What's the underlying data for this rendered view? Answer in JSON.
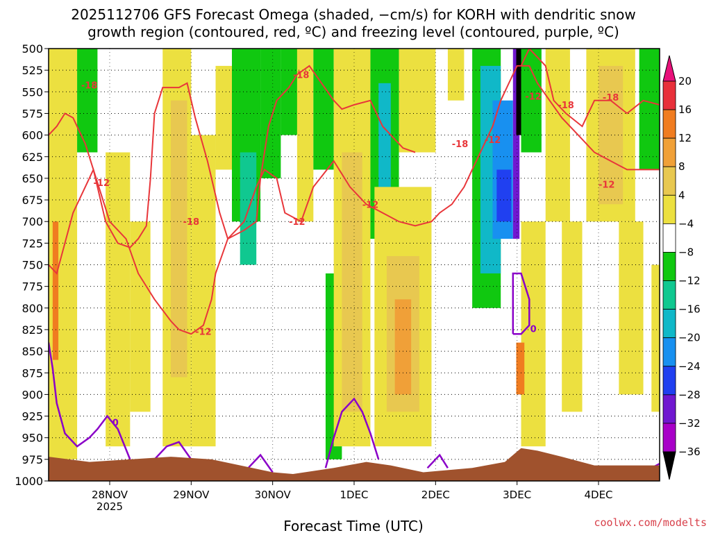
{
  "chart_data": {
    "type": "heatmap",
    "title_line1": "2025112706 GFS Forecast Omega (shaded, −cm/s) for KORH with dendritic snow",
    "title_line2": "growth region (contoured, red, ºC) and freezing level (contoured, purple, ºC)",
    "xlabel": "Forecast Time (UTC)",
    "ylabel": "",
    "credit": "coolwx.com/modelts",
    "y_levels": [
      500,
      525,
      550,
      575,
      600,
      625,
      650,
      675,
      700,
      725,
      750,
      775,
      800,
      825,
      850,
      875,
      900,
      925,
      950,
      975,
      1000
    ],
    "ylim": [
      500,
      1000
    ],
    "x_ticks": [
      {
        "label": "28NOV",
        "sub": "2025",
        "t": 0.75
      },
      {
        "label": "29NOV",
        "sub": "",
        "t": 1.75
      },
      {
        "label": "30NOV",
        "sub": "",
        "t": 2.75
      },
      {
        "label": "1DEC",
        "sub": "",
        "t": 3.75
      },
      {
        "label": "2DEC",
        "sub": "",
        "t": 4.75
      },
      {
        "label": "3DEC",
        "sub": "",
        "t": 5.75
      },
      {
        "label": "4DEC",
        "sub": "",
        "t": 6.75
      }
    ],
    "xlim": [
      0,
      7.5
    ],
    "colorbar": {
      "levels": [
        "20",
        "16",
        "12",
        "8",
        "4",
        "−4",
        "−8",
        "−12",
        "−16",
        "−20",
        "−24",
        "−28",
        "−32",
        "−36"
      ],
      "colors": [
        "#e8303a",
        "#f07c20",
        "#f0a038",
        "#e8c850",
        "#ece040",
        "#ffffff",
        "#10c810",
        "#10c890",
        "#10b8c8",
        "#1890f0",
        "#2040f0",
        "#7018d0",
        "#a800c8",
        "#a8a8a8"
      ],
      "top_color": "#e8107a",
      "bottom_color": "#000000"
    },
    "omega_bands": [
      {
        "t0": 0.0,
        "t1": 0.35,
        "p0": 500,
        "p1": 975,
        "value": 6
      },
      {
        "t0": 0.05,
        "t1": 0.12,
        "p0": 700,
        "p1": 860,
        "value": 18
      },
      {
        "t0": 0.35,
        "t1": 0.6,
        "p0": 500,
        "p1": 620,
        "value": -6
      },
      {
        "t0": 0.7,
        "t1": 1.0,
        "p0": 620,
        "p1": 960,
        "value": 6
      },
      {
        "t0": 1.0,
        "t1": 1.25,
        "p0": 700,
        "p1": 920,
        "value": 6
      },
      {
        "t0": 1.4,
        "t1": 1.75,
        "p0": 500,
        "p1": 960,
        "value": 6
      },
      {
        "t0": 1.5,
        "t1": 1.7,
        "p0": 560,
        "p1": 880,
        "value": 10
      },
      {
        "t0": 1.75,
        "t1": 2.05,
        "p0": 600,
        "p1": 960,
        "value": 6
      },
      {
        "t0": 2.05,
        "t1": 2.25,
        "p0": 520,
        "p1": 640,
        "value": 6
      },
      {
        "t0": 2.25,
        "t1": 2.6,
        "p0": 500,
        "p1": 700,
        "value": -7
      },
      {
        "t0": 2.35,
        "t1": 2.55,
        "p0": 620,
        "p1": 750,
        "value": -10
      },
      {
        "t0": 2.6,
        "t1": 2.85,
        "p0": 500,
        "p1": 650,
        "value": -6
      },
      {
        "t0": 2.85,
        "t1": 3.1,
        "p0": 500,
        "p1": 600,
        "value": -6
      },
      {
        "t0": 3.05,
        "t1": 3.25,
        "p0": 500,
        "p1": 700,
        "value": 6
      },
      {
        "t0": 3.25,
        "t1": 3.5,
        "p0": 500,
        "p1": 640,
        "value": -6
      },
      {
        "t0": 3.4,
        "t1": 3.6,
        "p0": 760,
        "p1": 975,
        "value": -6
      },
      {
        "t0": 3.5,
        "t1": 3.95,
        "p0": 500,
        "p1": 960,
        "value": 6
      },
      {
        "t0": 3.6,
        "t1": 3.85,
        "p0": 620,
        "p1": 920,
        "value": 10
      },
      {
        "t0": 3.95,
        "t1": 4.3,
        "p0": 500,
        "p1": 720,
        "value": -8
      },
      {
        "t0": 4.05,
        "t1": 4.2,
        "p0": 540,
        "p1": 700,
        "value": -14
      },
      {
        "t0": 4.0,
        "t1": 4.7,
        "p0": 660,
        "p1": 960,
        "value": 6
      },
      {
        "t0": 4.15,
        "t1": 4.55,
        "p0": 740,
        "p1": 920,
        "value": 10
      },
      {
        "t0": 4.25,
        "t1": 4.45,
        "p0": 790,
        "p1": 900,
        "value": 14
      },
      {
        "t0": 4.3,
        "t1": 4.75,
        "p0": 500,
        "p1": 620,
        "value": 6
      },
      {
        "t0": 4.9,
        "t1": 5.1,
        "p0": 500,
        "p1": 560,
        "value": 6
      },
      {
        "t0": 5.2,
        "t1": 5.55,
        "p0": 500,
        "p1": 800,
        "value": -8
      },
      {
        "t0": 5.3,
        "t1": 5.55,
        "p0": 520,
        "p1": 760,
        "value": -14
      },
      {
        "t0": 5.45,
        "t1": 5.7,
        "p0": 560,
        "p1": 720,
        "value": -18
      },
      {
        "t0": 5.5,
        "t1": 5.68,
        "p0": 640,
        "p1": 700,
        "value": -22
      },
      {
        "t0": 5.7,
        "t1": 5.78,
        "p0": 500,
        "p1": 720,
        "value": -26
      },
      {
        "t0": 5.74,
        "t1": 5.82,
        "p0": 500,
        "p1": 600,
        "value": -40
      },
      {
        "t0": 5.8,
        "t1": 6.05,
        "p0": 500,
        "p1": 620,
        "value": -6
      },
      {
        "t0": 5.8,
        "t1": 6.1,
        "p0": 700,
        "p1": 960,
        "value": 6
      },
      {
        "t0": 5.74,
        "t1": 5.84,
        "p0": 840,
        "p1": 900,
        "value": 18
      },
      {
        "t0": 6.1,
        "t1": 6.4,
        "p0": 500,
        "p1": 700,
        "value": 6
      },
      {
        "t0": 6.3,
        "t1": 6.55,
        "p0": 700,
        "p1": 920,
        "value": 6
      },
      {
        "t0": 6.6,
        "t1": 7.2,
        "p0": 500,
        "p1": 700,
        "value": 6
      },
      {
        "t0": 6.75,
        "t1": 7.05,
        "p0": 520,
        "p1": 680,
        "value": 10
      },
      {
        "t0": 7.0,
        "t1": 7.3,
        "p0": 700,
        "p1": 900,
        "value": 6
      },
      {
        "t0": 7.25,
        "t1": 7.5,
        "p0": 500,
        "p1": 640,
        "value": -6
      },
      {
        "t0": 7.4,
        "t1": 7.5,
        "p0": 750,
        "p1": 920,
        "value": 6
      }
    ],
    "contours_red": [
      {
        "label": "-18",
        "points": [
          [
            0.0,
            600
          ],
          [
            0.1,
            590
          ],
          [
            0.2,
            575
          ],
          [
            0.3,
            580
          ],
          [
            0.45,
            610
          ],
          [
            0.55,
            640
          ],
          [
            0.7,
            700
          ],
          [
            0.85,
            725
          ],
          [
            1.0,
            730
          ],
          [
            1.1,
            720
          ],
          [
            1.2,
            705
          ],
          [
            1.25,
            650
          ],
          [
            1.3,
            575
          ],
          [
            1.4,
            545
          ],
          [
            1.5,
            545
          ],
          [
            1.6,
            545
          ],
          [
            1.7,
            540
          ],
          [
            1.8,
            580
          ],
          [
            1.95,
            630
          ],
          [
            2.1,
            690
          ],
          [
            2.2,
            720
          ],
          [
            2.4,
            710
          ],
          [
            2.55,
            700
          ],
          [
            2.6,
            650
          ],
          [
            2.7,
            590
          ],
          [
            2.8,
            560
          ],
          [
            2.95,
            545
          ],
          [
            3.05,
            530
          ],
          [
            3.2,
            520
          ],
          [
            3.35,
            540
          ],
          [
            3.5,
            560
          ],
          [
            3.6,
            570
          ],
          [
            3.75,
            565
          ],
          [
            3.95,
            560
          ],
          [
            4.1,
            590
          ],
          [
            4.2,
            600
          ],
          [
            4.35,
            615
          ],
          [
            4.5,
            620
          ]
        ]
      },
      {
        "label": "-12",
        "points": [
          [
            0.0,
            750
          ],
          [
            0.1,
            760
          ],
          [
            0.3,
            690
          ],
          [
            0.55,
            640
          ],
          [
            0.75,
            700
          ],
          [
            0.95,
            720
          ],
          [
            1.1,
            760
          ],
          [
            1.3,
            790
          ],
          [
            1.5,
            815
          ],
          [
            1.6,
            825
          ],
          [
            1.75,
            830
          ],
          [
            1.9,
            820
          ],
          [
            2.0,
            790
          ],
          [
            2.05,
            760
          ],
          [
            2.2,
            720
          ],
          [
            2.4,
            700
          ],
          [
            2.55,
            660
          ],
          [
            2.65,
            640
          ],
          [
            2.8,
            650
          ],
          [
            2.9,
            690
          ],
          [
            3.1,
            700
          ],
          [
            3.25,
            660
          ],
          [
            3.5,
            630
          ],
          [
            3.7,
            660
          ],
          [
            3.9,
            680
          ],
          [
            4.1,
            690
          ],
          [
            4.3,
            700
          ],
          [
            4.5,
            705
          ],
          [
            4.7,
            700
          ],
          [
            4.8,
            690
          ],
          [
            4.95,
            680
          ],
          [
            5.1,
            660
          ],
          [
            5.2,
            640
          ],
          [
            5.3,
            620
          ],
          [
            5.45,
            590
          ],
          [
            5.55,
            560
          ],
          [
            5.65,
            540
          ],
          [
            5.75,
            520
          ],
          [
            5.9,
            520
          ],
          [
            6.0,
            540
          ],
          [
            6.15,
            560
          ],
          [
            6.3,
            580
          ],
          [
            6.5,
            600
          ],
          [
            6.7,
            620
          ],
          [
            6.9,
            630
          ],
          [
            7.1,
            640
          ],
          [
            7.3,
            640
          ],
          [
            7.5,
            640
          ]
        ]
      },
      {
        "label": "-18",
        "points": [
          [
            5.8,
            520
          ],
          [
            5.9,
            500
          ],
          [
            6.1,
            520
          ],
          [
            6.2,
            560
          ],
          [
            6.35,
            575
          ],
          [
            6.55,
            590
          ],
          [
            6.7,
            560
          ],
          [
            6.9,
            560
          ],
          [
            7.1,
            575
          ],
          [
            7.3,
            560
          ],
          [
            7.5,
            565
          ]
        ]
      }
    ],
    "contour_labels_red": [
      {
        "text": "-18",
        "t": 0.5,
        "p": 542
      },
      {
        "text": "-12",
        "t": 0.65,
        "p": 655
      },
      {
        "text": "-18",
        "t": 1.75,
        "p": 700
      },
      {
        "text": "-12",
        "t": 1.9,
        "p": 827
      },
      {
        "text": "-18",
        "t": 3.1,
        "p": 530
      },
      {
        "text": "-12",
        "t": 3.05,
        "p": 700
      },
      {
        "text": "-12",
        "t": 3.95,
        "p": 680
      },
      {
        "text": "-18",
        "t": 5.05,
        "p": 610
      },
      {
        "text": "-12",
        "t": 5.45,
        "p": 605
      },
      {
        "text": "-12",
        "t": 5.95,
        "p": 555
      },
      {
        "text": "-18",
        "t": 6.35,
        "p": 565
      },
      {
        "text": "-18",
        "t": 6.9,
        "p": 556
      },
      {
        "text": "-12",
        "t": 6.85,
        "p": 657
      }
    ],
    "contours_purple": [
      {
        "label": "0",
        "points": [
          [
            0.0,
            840
          ],
          [
            0.05,
            870
          ],
          [
            0.1,
            910
          ],
          [
            0.2,
            945
          ],
          [
            0.35,
            960
          ],
          [
            0.5,
            950
          ],
          [
            0.6,
            940
          ],
          [
            0.72,
            925
          ],
          [
            0.85,
            940
          ],
          [
            1.0,
            975
          ]
        ]
      },
      {
        "label": "0",
        "points": [
          [
            1.3,
            975
          ],
          [
            1.45,
            960
          ],
          [
            1.6,
            955
          ],
          [
            1.75,
            975
          ]
        ]
      },
      {
        "label": "0",
        "points": [
          [
            2.45,
            985
          ],
          [
            2.6,
            970
          ],
          [
            2.75,
            990
          ]
        ]
      },
      {
        "label": "0",
        "points": [
          [
            3.4,
            985
          ],
          [
            3.5,
            950
          ],
          [
            3.6,
            920
          ],
          [
            3.75,
            905
          ],
          [
            3.85,
            920
          ],
          [
            3.95,
            945
          ],
          [
            4.05,
            975
          ]
        ]
      },
      {
        "label": "0",
        "points": [
          [
            4.65,
            985
          ],
          [
            4.8,
            970
          ],
          [
            4.9,
            985
          ]
        ]
      },
      {
        "label": "0",
        "points": [
          [
            5.7,
            830
          ],
          [
            5.7,
            760
          ],
          [
            5.8,
            760
          ],
          [
            5.9,
            790
          ],
          [
            5.9,
            820
          ],
          [
            5.8,
            830
          ],
          [
            5.7,
            830
          ]
        ]
      },
      {
        "label": "0",
        "points": [
          [
            7.4,
            985
          ],
          [
            7.5,
            980
          ]
        ]
      }
    ],
    "contour_labels_purple": [
      {
        "text": "0",
        "t": 0.82,
        "p": 932
      },
      {
        "text": "0",
        "t": 5.95,
        "p": 824
      }
    ],
    "terrain": {
      "color": "#a0522d",
      "surface_p": [
        [
          0.0,
          972
        ],
        [
          0.5,
          978
        ],
        [
          1.0,
          975
        ],
        [
          1.5,
          972
        ],
        [
          2.0,
          975
        ],
        [
          2.5,
          985
        ],
        [
          2.75,
          990
        ],
        [
          3.0,
          992
        ],
        [
          3.5,
          985
        ],
        [
          3.9,
          978
        ],
        [
          4.2,
          982
        ],
        [
          4.6,
          990
        ],
        [
          5.2,
          985
        ],
        [
          5.6,
          978
        ],
        [
          5.8,
          962
        ],
        [
          6.0,
          965
        ],
        [
          6.3,
          972
        ],
        [
          6.7,
          982
        ],
        [
          7.0,
          982
        ],
        [
          7.5,
          982
        ]
      ]
    }
  }
}
